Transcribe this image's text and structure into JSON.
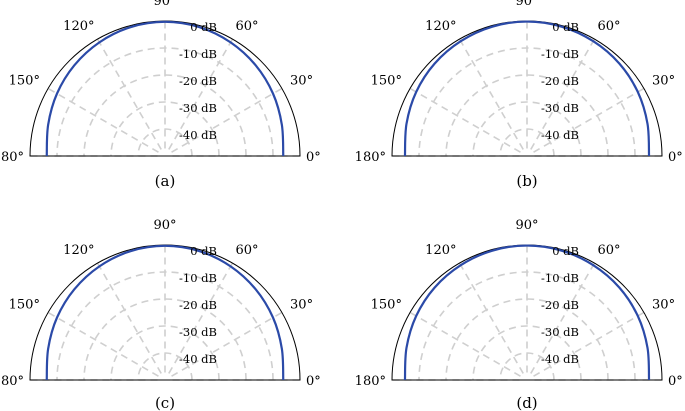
{
  "chart_data": [
    {
      "type": "polar-line",
      "caption": "(a)",
      "angle_range_deg": [
        0,
        180
      ],
      "angle_ticks": [
        "0°",
        "30°",
        "60°",
        "90°",
        "120°",
        "150°",
        "180°"
      ],
      "radial_ticks": [
        "0 dB",
        "-10 dB",
        "-20 dB",
        "-30 dB",
        "-40 dB"
      ],
      "radial_range_db": [
        -50,
        0
      ],
      "grid": true,
      "series": [
        {
          "color": "#2b4aa8",
          "angles_deg": [
            0,
            15,
            30,
            45,
            60,
            75,
            90,
            105,
            120,
            135,
            150,
            165,
            180
          ],
          "values_db": [
            -6.2,
            -5.2,
            -3.8,
            -2.5,
            -1.4,
            -0.6,
            -0.3,
            -0.6,
            -1.4,
            -2.5,
            -3.8,
            -5.2,
            -6.2
          ]
        }
      ]
    },
    {
      "type": "polar-line",
      "caption": "(b)",
      "angle_range_deg": [
        0,
        180
      ],
      "angle_ticks": [
        "0°",
        "30°",
        "60°",
        "90°",
        "120°",
        "150°",
        "180°"
      ],
      "radial_ticks": [
        "0 dB",
        "-10 dB",
        "-20 dB",
        "-30 dB",
        "-40 dB"
      ],
      "radial_range_db": [
        -50,
        0
      ],
      "grid": true,
      "series": [
        {
          "color": "#2b4aa8",
          "angles_deg": [
            0,
            15,
            30,
            45,
            60,
            75,
            90,
            105,
            120,
            135,
            150,
            165,
            180
          ],
          "values_db": [
            -4.8,
            -3.8,
            -2.6,
            -1.6,
            -0.9,
            -0.4,
            -0.2,
            -0.4,
            -0.9,
            -1.6,
            -2.6,
            -3.8,
            -4.8
          ]
        }
      ]
    },
    {
      "type": "polar-line",
      "caption": "(c)",
      "angle_range_deg": [
        0,
        180
      ],
      "angle_ticks": [
        "0°",
        "30°",
        "60°",
        "90°",
        "120°",
        "150°",
        "180°"
      ],
      "radial_ticks": [
        "0 dB",
        "-10 dB",
        "-20 dB",
        "-30 dB",
        "-40 dB"
      ],
      "radial_range_db": [
        -50,
        0
      ],
      "grid": true,
      "series": [
        {
          "color": "#2b4aa8",
          "angles_deg": [
            0,
            15,
            30,
            45,
            60,
            75,
            90,
            105,
            120,
            135,
            150,
            165,
            180
          ],
          "values_db": [
            -6.2,
            -5.2,
            -3.8,
            -2.5,
            -1.4,
            -0.6,
            -0.3,
            -0.6,
            -1.4,
            -2.5,
            -3.8,
            -5.2,
            -6.2
          ]
        }
      ]
    },
    {
      "type": "polar-line",
      "caption": "(d)",
      "angle_range_deg": [
        0,
        180
      ],
      "angle_ticks": [
        "0°",
        "30°",
        "60°",
        "90°",
        "120°",
        "150°",
        "180°"
      ],
      "radial_ticks": [
        "0 dB",
        "-10 dB",
        "-20 dB",
        "-30 dB",
        "-40 dB"
      ],
      "radial_range_db": [
        -50,
        0
      ],
      "grid": true,
      "series": [
        {
          "color": "#2b4aa8",
          "angles_deg": [
            0,
            15,
            30,
            45,
            60,
            75,
            90,
            105,
            120,
            135,
            150,
            165,
            180
          ],
          "values_db": [
            -4.8,
            -3.8,
            -2.6,
            -1.6,
            -0.9,
            -0.4,
            -0.2,
            -0.4,
            -0.9,
            -1.6,
            -2.6,
            -3.8,
            -4.8
          ]
        }
      ]
    }
  ]
}
